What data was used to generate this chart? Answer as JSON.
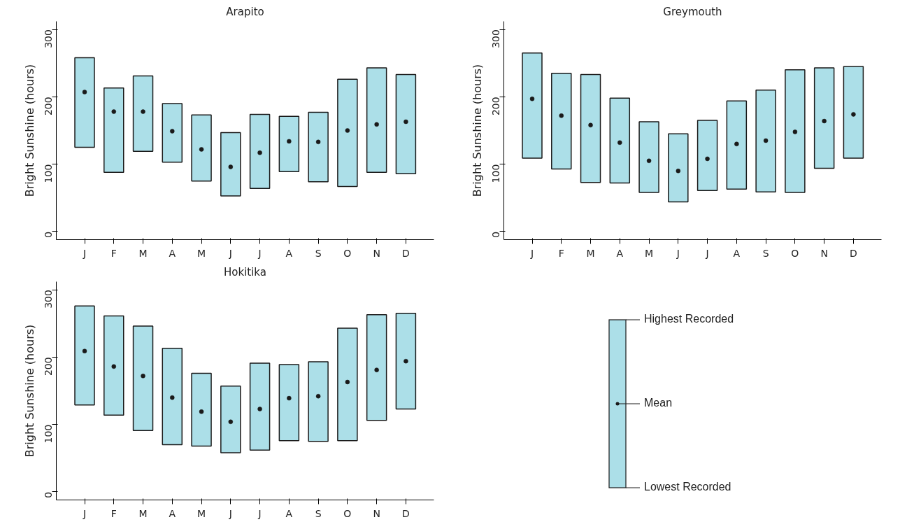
{
  "chart_data": [
    {
      "type": "bar",
      "title": "Arapito",
      "ylabel": "Bright Sunshine (hours)",
      "categories": [
        "J",
        "F",
        "M",
        "A",
        "M",
        "J",
        "J",
        "A",
        "S",
        "O",
        "N",
        "D"
      ],
      "ylim": [
        -12,
        312
      ],
      "yticks": [
        0,
        100,
        200,
        300
      ],
      "grid": false,
      "series": [
        {
          "type": "bar",
          "color": "#acdfe8",
          "base": [
            125,
            88,
            119,
            103,
            75,
            53,
            64,
            89,
            74,
            67,
            88,
            86
          ],
          "values": [
            133,
            125,
            112,
            87,
            98,
            94,
            110,
            82,
            103,
            159,
            155,
            147
          ]
        },
        {
          "type": "scatter",
          "color": "#1a1a1a",
          "marker": "circle",
          "values": [
            207,
            178,
            178,
            149,
            122,
            96,
            117,
            134,
            133,
            150,
            159,
            163
          ]
        }
      ]
    },
    {
      "type": "bar",
      "title": "Greymouth",
      "ylabel": "Bright Sunshine (hours)",
      "categories": [
        "J",
        "F",
        "M",
        "A",
        "M",
        "J",
        "J",
        "A",
        "S",
        "O",
        "N",
        "D"
      ],
      "ylim": [
        -12,
        312
      ],
      "yticks": [
        0,
        100,
        200,
        300
      ],
      "grid": false,
      "series": [
        {
          "type": "bar",
          "color": "#acdfe8",
          "base": [
            109,
            93,
            73,
            72,
            58,
            44,
            61,
            63,
            59,
            58,
            94,
            109
          ],
          "values": [
            156,
            142,
            160,
            126,
            105,
            101,
            104,
            131,
            151,
            182,
            149,
            136
          ]
        },
        {
          "type": "scatter",
          "color": "#1a1a1a",
          "marker": "circle",
          "values": [
            197,
            172,
            158,
            132,
            105,
            90,
            108,
            130,
            135,
            148,
            164,
            174
          ]
        }
      ]
    },
    {
      "type": "bar",
      "title": "Hokitika",
      "ylabel": "Bright Sunshine (hours)",
      "categories": [
        "J",
        "F",
        "M",
        "A",
        "M",
        "J",
        "J",
        "A",
        "S",
        "O",
        "N",
        "D"
      ],
      "ylim": [
        -12,
        312
      ],
      "yticks": [
        0,
        100,
        200,
        300
      ],
      "grid": false,
      "series": [
        {
          "type": "bar",
          "color": "#acdfe8",
          "base": [
            129,
            114,
            91,
            70,
            68,
            58,
            62,
            76,
            75,
            76,
            106,
            123
          ],
          "values": [
            147,
            147,
            155,
            143,
            108,
            99,
            129,
            113,
            118,
            167,
            157,
            142
          ]
        },
        {
          "type": "scatter",
          "color": "#1a1a1a",
          "marker": "circle",
          "values": [
            209,
            186,
            172,
            140,
            119,
            104,
            123,
            139,
            142,
            163,
            181,
            194
          ]
        }
      ]
    },
    {
      "type": "other",
      "annotations": [
        "Highest Recorded",
        "Mean",
        "Lowest Recorded"
      ]
    }
  ]
}
